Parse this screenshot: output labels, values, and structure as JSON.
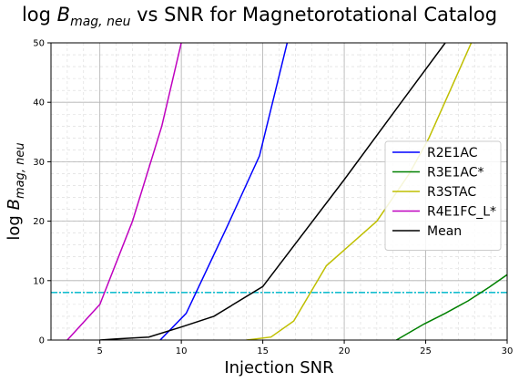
{
  "chart_data": {
    "type": "line",
    "title_parts": {
      "prefix": "log ",
      "var": "B",
      "sub": "mag, neu",
      "suffix": " vs SNR for Magnetorotational Catalog"
    },
    "xlabel": "Injection SNR",
    "ylabel_parts": {
      "prefix": "log ",
      "var": "B",
      "sub": "mag, neu"
    },
    "xlim": [
      2,
      30
    ],
    "ylim": [
      0,
      50
    ],
    "xticks": [
      5,
      10,
      15,
      20,
      25,
      30
    ],
    "yticks": [
      0,
      10,
      20,
      30,
      40,
      50
    ],
    "grid": true,
    "minor_grid": true,
    "legend_position": "center-right",
    "threshold": {
      "y": 8,
      "color": "#17becf"
    },
    "series": [
      {
        "name": "R2E1AC",
        "color": "#0000ff",
        "x": [
          8.7,
          10.3,
          12.8,
          14.8,
          16.5
        ],
        "y": [
          0,
          4.5,
          19,
          31,
          50
        ]
      },
      {
        "name": "R3E1AC*",
        "color": "#008000",
        "x": [
          23.2,
          24.9,
          26.2,
          27.6,
          28.9,
          30
        ],
        "y": [
          0,
          2.7,
          4.5,
          6.6,
          8.9,
          11
        ]
      },
      {
        "name": "R3STAC",
        "color": "#bfbf00",
        "x": [
          14.0,
          15.5,
          16.9,
          18.9,
          22.0,
          24.0,
          25.2,
          26.5,
          27.8
        ],
        "y": [
          0,
          0.5,
          3.2,
          12.5,
          20,
          28,
          34,
          42,
          50
        ]
      },
      {
        "name": "R4E1FC_L*",
        "color": "#bf00bf",
        "x": [
          3.0,
          5.0,
          7.0,
          8.8,
          10.0
        ],
        "y": [
          0,
          6,
          20,
          36,
          50
        ]
      },
      {
        "name": "Mean",
        "color": "#000000",
        "x": [
          5.0,
          6.0,
          8.0,
          10.0,
          12.0,
          15.0,
          20.0,
          23.5,
          26.2
        ],
        "y": [
          0,
          0.2,
          0.5,
          2.2,
          4,
          9,
          27,
          40,
          50
        ]
      }
    ]
  }
}
